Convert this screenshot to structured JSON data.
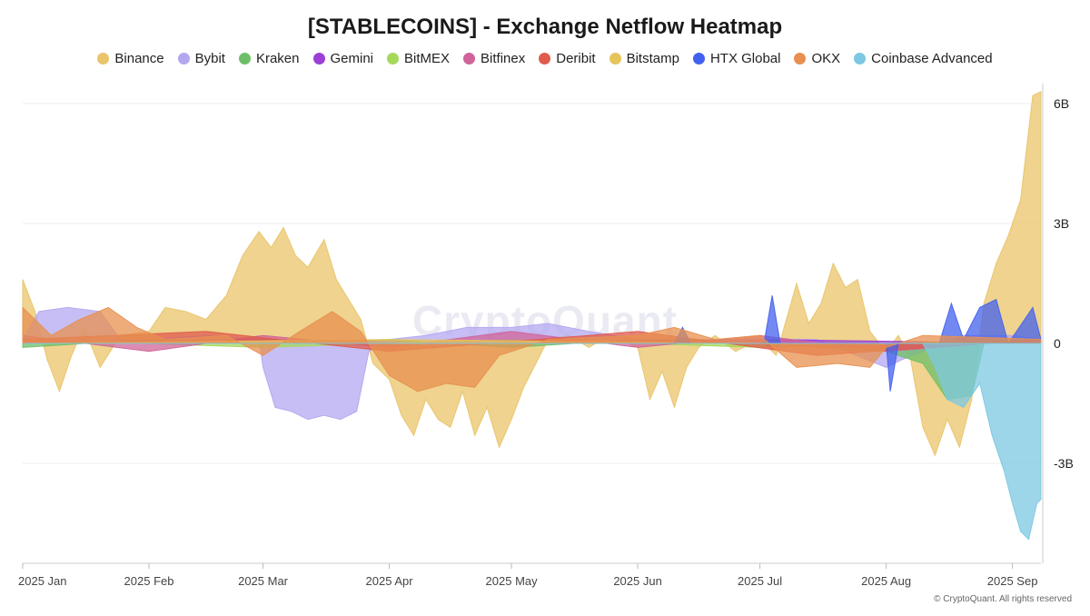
{
  "title": "[STABLECOINS] - Exchange Netflow Heatmap",
  "watermark": "CryptoQuant",
  "copyright": "© CryptoQuant. All rights reserved",
  "legend": [
    {
      "name": "Binance",
      "color": "#E9C46A"
    },
    {
      "name": "Bybit",
      "color": "#B3A8F0"
    },
    {
      "name": "Kraken",
      "color": "#6DBF67"
    },
    {
      "name": "Gemini",
      "color": "#9B3FD6"
    },
    {
      "name": "BitMEX",
      "color": "#A6D85B"
    },
    {
      "name": "Bitfinex",
      "color": "#D0649A"
    },
    {
      "name": "Deribit",
      "color": "#E05B4C"
    },
    {
      "name": "Bitstamp",
      "color": "#E6C45A"
    },
    {
      "name": "HTX Global",
      "color": "#4361EE"
    },
    {
      "name": "OKX",
      "color": "#E8904F"
    },
    {
      "name": "Coinbase Advanced",
      "color": "#7CC8E2"
    }
  ],
  "chart_data": {
    "type": "area",
    "title": "[STABLECOINS] - Exchange Netflow Heatmap",
    "x_range": [
      "2025-01-01",
      "2025-09-08"
    ],
    "x_ticks": [
      "2025 Jan",
      "2025 Feb",
      "2025 Mar",
      "2025 Apr",
      "2025 May",
      "2025 Jun",
      "2025 Jul",
      "2025 Aug",
      "2025 Sep"
    ],
    "y_ticks": [
      "6B",
      "3B",
      "0",
      "-3B"
    ],
    "ylim": [
      -5.5,
      6.5
    ],
    "y_unit": "B",
    "grid": true,
    "legend_position": "top",
    "series": [
      {
        "name": "Binance",
        "color": "#E9C46A",
        "points": [
          [
            "2025-01-01",
            1.6
          ],
          [
            "2025-01-04",
            0.8
          ],
          [
            "2025-01-07",
            -0.4
          ],
          [
            "2025-01-10",
            -1.2
          ],
          [
            "2025-01-13",
            -0.3
          ],
          [
            "2025-01-16",
            0.4
          ],
          [
            "2025-01-20",
            -0.6
          ],
          [
            "2025-01-25",
            0.2
          ],
          [
            "2025-02-01",
            0.3
          ],
          [
            "2025-02-05",
            0.9
          ],
          [
            "2025-02-10",
            0.8
          ],
          [
            "2025-02-15",
            0.6
          ],
          [
            "2025-02-20",
            1.2
          ],
          [
            "2025-02-24",
            2.2
          ],
          [
            "2025-02-28",
            2.8
          ],
          [
            "2025-03-03",
            2.4
          ],
          [
            "2025-03-06",
            2.9
          ],
          [
            "2025-03-09",
            2.2
          ],
          [
            "2025-03-12",
            1.9
          ],
          [
            "2025-03-16",
            2.6
          ],
          [
            "2025-03-19",
            1.6
          ],
          [
            "2025-03-22",
            1.1
          ],
          [
            "2025-03-25",
            0.6
          ],
          [
            "2025-03-28",
            -0.5
          ],
          [
            "2025-04-01",
            -0.9
          ],
          [
            "2025-04-04",
            -1.8
          ],
          [
            "2025-04-07",
            -2.3
          ],
          [
            "2025-04-10",
            -1.4
          ],
          [
            "2025-04-13",
            -1.9
          ],
          [
            "2025-04-16",
            -2.1
          ],
          [
            "2025-04-19",
            -1.2
          ],
          [
            "2025-04-22",
            -2.3
          ],
          [
            "2025-04-25",
            -1.6
          ],
          [
            "2025-04-28",
            -2.6
          ],
          [
            "2025-05-01",
            -1.9
          ],
          [
            "2025-05-04",
            -1.1
          ],
          [
            "2025-05-07",
            -0.5
          ],
          [
            "2025-05-10",
            0.1
          ],
          [
            "2025-05-15",
            0.2
          ],
          [
            "2025-05-20",
            -0.1
          ],
          [
            "2025-05-25",
            0.2
          ],
          [
            "2025-06-01",
            -0.1
          ],
          [
            "2025-06-04",
            -1.4
          ],
          [
            "2025-06-07",
            -0.7
          ],
          [
            "2025-06-10",
            -1.6
          ],
          [
            "2025-06-13",
            -0.6
          ],
          [
            "2025-06-16",
            -0.1
          ],
          [
            "2025-06-20",
            0.2
          ],
          [
            "2025-06-25",
            -0.2
          ],
          [
            "2025-07-01",
            0.1
          ],
          [
            "2025-07-05",
            -0.3
          ],
          [
            "2025-07-10",
            1.5
          ],
          [
            "2025-07-13",
            0.5
          ],
          [
            "2025-07-16",
            1.0
          ],
          [
            "2025-07-19",
            2.0
          ],
          [
            "2025-07-22",
            1.4
          ],
          [
            "2025-07-25",
            1.6
          ],
          [
            "2025-07-28",
            0.3
          ],
          [
            "2025-08-01",
            -0.2
          ],
          [
            "2025-08-04",
            0.2
          ],
          [
            "2025-08-07",
            -0.4
          ],
          [
            "2025-08-10",
            -2.1
          ],
          [
            "2025-08-13",
            -2.8
          ],
          [
            "2025-08-16",
            -1.9
          ],
          [
            "2025-08-19",
            -2.6
          ],
          [
            "2025-08-22",
            -1.4
          ],
          [
            "2025-08-25",
            1.0
          ],
          [
            "2025-08-28",
            2.0
          ],
          [
            "2025-08-31",
            2.7
          ],
          [
            "2025-09-03",
            3.6
          ],
          [
            "2025-09-06",
            6.2
          ],
          [
            "2025-09-08",
            6.3
          ]
        ]
      },
      {
        "name": "Bybit",
        "color": "#B3A8F0",
        "points": [
          [
            "2025-01-01",
            0.1
          ],
          [
            "2025-01-05",
            0.8
          ],
          [
            "2025-01-12",
            0.9
          ],
          [
            "2025-01-20",
            0.8
          ],
          [
            "2025-01-25",
            0.1
          ],
          [
            "2025-02-01",
            0.1
          ],
          [
            "2025-02-15",
            0.2
          ],
          [
            "2025-02-28",
            0.1
          ],
          [
            "2025-03-01",
            -0.6
          ],
          [
            "2025-03-04",
            -1.6
          ],
          [
            "2025-03-08",
            -1.7
          ],
          [
            "2025-03-12",
            -1.9
          ],
          [
            "2025-03-16",
            -1.8
          ],
          [
            "2025-03-20",
            -1.9
          ],
          [
            "2025-03-24",
            -1.7
          ],
          [
            "2025-03-27",
            -0.2
          ],
          [
            "2025-04-01",
            0.1
          ],
          [
            "2025-04-10",
            0.2
          ],
          [
            "2025-04-20",
            0.4
          ],
          [
            "2025-05-01",
            0.4
          ],
          [
            "2025-05-10",
            0.5
          ],
          [
            "2025-05-20",
            0.3
          ],
          [
            "2025-06-01",
            0.1
          ],
          [
            "2025-06-15",
            0.1
          ],
          [
            "2025-07-01",
            0.1
          ],
          [
            "2025-07-15",
            0.1
          ],
          [
            "2025-08-01",
            -0.6
          ],
          [
            "2025-08-05",
            -0.4
          ],
          [
            "2025-08-10",
            -0.2
          ],
          [
            "2025-08-20",
            0.2
          ],
          [
            "2025-09-01",
            0.2
          ],
          [
            "2025-09-08",
            0.1
          ]
        ]
      },
      {
        "name": "Kraken",
        "color": "#6DBF67",
        "points": [
          [
            "2025-01-01",
            -0.1
          ],
          [
            "2025-02-01",
            0.1
          ],
          [
            "2025-03-01",
            0.0
          ],
          [
            "2025-04-01",
            0.1
          ],
          [
            "2025-05-01",
            -0.1
          ],
          [
            "2025-06-01",
            0.1
          ],
          [
            "2025-07-01",
            0.0
          ],
          [
            "2025-08-01",
            -0.2
          ],
          [
            "2025-08-10",
            -0.5
          ],
          [
            "2025-08-16",
            -1.4
          ],
          [
            "2025-08-22",
            -1.3
          ],
          [
            "2025-08-25",
            0.0
          ],
          [
            "2025-09-08",
            0.1
          ]
        ]
      },
      {
        "name": "Gemini",
        "color": "#9B3FD6",
        "points": [
          [
            "2025-01-01",
            0.0
          ],
          [
            "2025-03-01",
            0.1
          ],
          [
            "2025-05-01",
            0.0
          ],
          [
            "2025-07-01",
            0.1
          ],
          [
            "2025-09-08",
            0.0
          ]
        ]
      },
      {
        "name": "BitMEX",
        "color": "#A6D85B",
        "points": [
          [
            "2025-01-01",
            0.1
          ],
          [
            "2025-03-01",
            -0.1
          ],
          [
            "2025-05-01",
            0.1
          ],
          [
            "2025-07-01",
            -0.1
          ],
          [
            "2025-09-08",
            0.1
          ]
        ]
      },
      {
        "name": "Bitfinex",
        "color": "#D0649A",
        "points": [
          [
            "2025-01-01",
            0.2
          ],
          [
            "2025-02-01",
            -0.2
          ],
          [
            "2025-03-01",
            0.2
          ],
          [
            "2025-04-01",
            -0.1
          ],
          [
            "2025-05-01",
            0.3
          ],
          [
            "2025-06-01",
            -0.1
          ],
          [
            "2025-07-01",
            0.2
          ],
          [
            "2025-08-01",
            -0.2
          ],
          [
            "2025-09-08",
            0.1
          ]
        ]
      },
      {
        "name": "Deribit",
        "color": "#E05B4C",
        "points": [
          [
            "2025-01-01",
            0.1
          ],
          [
            "2025-02-15",
            0.3
          ],
          [
            "2025-04-01",
            -0.2
          ],
          [
            "2025-06-01",
            0.3
          ],
          [
            "2025-07-15",
            -0.3
          ],
          [
            "2025-09-08",
            0.1
          ]
        ]
      },
      {
        "name": "Bitstamp",
        "color": "#E6C45A",
        "points": [
          [
            "2025-01-01",
            0.0
          ],
          [
            "2025-04-01",
            0.1
          ],
          [
            "2025-07-01",
            0.0
          ],
          [
            "2025-09-08",
            0.0
          ]
        ]
      },
      {
        "name": "HTX Global",
        "color": "#4361EE",
        "points": [
          [
            "2025-01-01",
            0.0
          ],
          [
            "2025-06-10",
            0.0
          ],
          [
            "2025-06-12",
            0.4
          ],
          [
            "2025-06-14",
            0.0
          ],
          [
            "2025-07-02",
            0.0
          ],
          [
            "2025-07-04",
            1.2
          ],
          [
            "2025-07-06",
            0.0
          ],
          [
            "2025-08-01",
            0.0
          ],
          [
            "2025-08-02",
            -1.2
          ],
          [
            "2025-08-04",
            0.0
          ],
          [
            "2025-08-14",
            0.0
          ],
          [
            "2025-08-17",
            1.0
          ],
          [
            "2025-08-20",
            0.1
          ],
          [
            "2025-08-24",
            0.9
          ],
          [
            "2025-08-28",
            1.1
          ],
          [
            "2025-08-31",
            0.0
          ],
          [
            "2025-09-06",
            0.9
          ],
          [
            "2025-09-08",
            0.1
          ]
        ]
      },
      {
        "name": "OKX",
        "color": "#E8904F",
        "points": [
          [
            "2025-01-01",
            0.9
          ],
          [
            "2025-01-08",
            0.2
          ],
          [
            "2025-01-15",
            0.6
          ],
          [
            "2025-01-22",
            0.9
          ],
          [
            "2025-01-29",
            0.4
          ],
          [
            "2025-02-05",
            0.1
          ],
          [
            "2025-02-20",
            0.2
          ],
          [
            "2025-03-01",
            -0.3
          ],
          [
            "2025-03-10",
            0.3
          ],
          [
            "2025-03-18",
            0.8
          ],
          [
            "2025-03-25",
            0.3
          ],
          [
            "2025-04-01",
            -0.8
          ],
          [
            "2025-04-08",
            -1.2
          ],
          [
            "2025-04-15",
            -1.0
          ],
          [
            "2025-04-22",
            -1.1
          ],
          [
            "2025-04-28",
            -0.3
          ],
          [
            "2025-05-10",
            0.1
          ],
          [
            "2025-06-01",
            0.2
          ],
          [
            "2025-06-10",
            0.4
          ],
          [
            "2025-06-20",
            0.1
          ],
          [
            "2025-07-01",
            0.2
          ],
          [
            "2025-07-10",
            -0.6
          ],
          [
            "2025-07-20",
            -0.5
          ],
          [
            "2025-07-28",
            -0.6
          ],
          [
            "2025-08-01",
            -0.1
          ],
          [
            "2025-08-10",
            0.2
          ],
          [
            "2025-09-08",
            0.1
          ]
        ]
      },
      {
        "name": "Coinbase Advanced",
        "color": "#7CC8E2",
        "points": [
          [
            "2025-01-01",
            0.0
          ],
          [
            "2025-08-10",
            0.0
          ],
          [
            "2025-08-13",
            -0.6
          ],
          [
            "2025-08-16",
            -1.4
          ],
          [
            "2025-08-20",
            -1.6
          ],
          [
            "2025-08-24",
            -1.0
          ],
          [
            "2025-08-27",
            -2.3
          ],
          [
            "2025-08-30",
            -3.2
          ],
          [
            "2025-09-01",
            -4.0
          ],
          [
            "2025-09-03",
            -4.7
          ],
          [
            "2025-09-05",
            -4.9
          ],
          [
            "2025-09-07",
            -4.0
          ],
          [
            "2025-09-08",
            -3.9
          ]
        ]
      }
    ]
  }
}
